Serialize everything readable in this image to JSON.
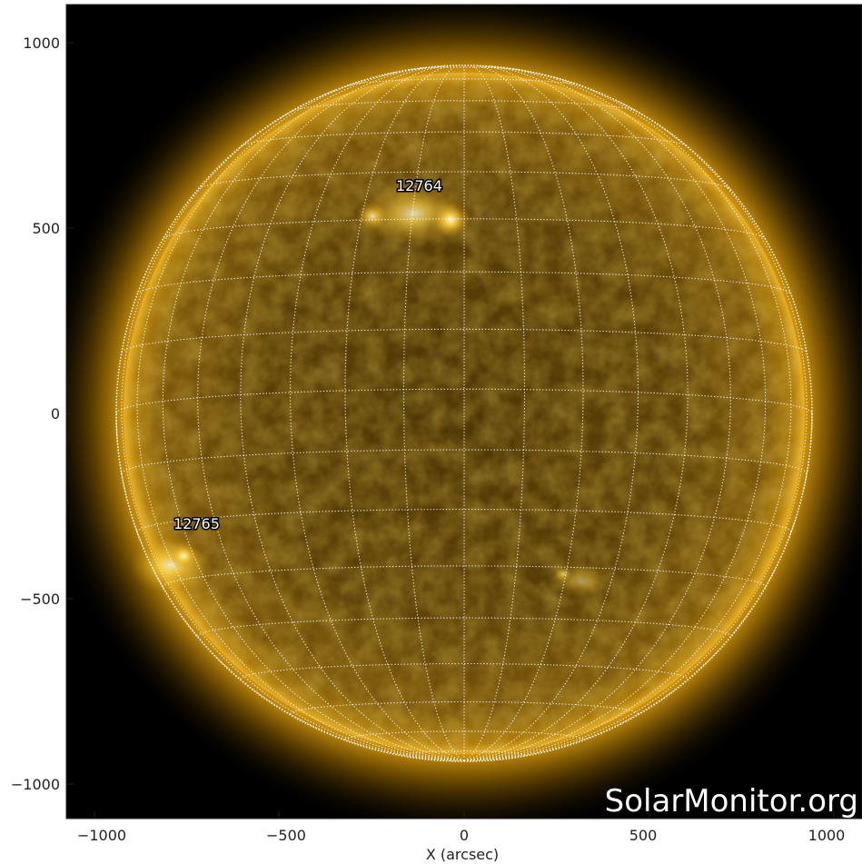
{
  "image": {
    "x_axis_title": "X (arcsec)",
    "watermark_text": "SolarMonitor.org",
    "x_tick_labels": [
      "−1000",
      "−500",
      "0",
      "500",
      "1000"
    ],
    "y_tick_labels": [
      "1000",
      "500",
      "0",
      "−500",
      "−1000"
    ],
    "active_regions": [
      {
        "label": "12764"
      },
      {
        "label": "12765"
      }
    ],
    "colors": {
      "disk_center": "#5a3e06",
      "disk_edge": "#a8780c",
      "limb_glow": "#ffcc33",
      "corona": "#b07a00",
      "background": "#000000",
      "grid": "#ffffff",
      "bright_loops": "#fff2b0"
    }
  }
}
